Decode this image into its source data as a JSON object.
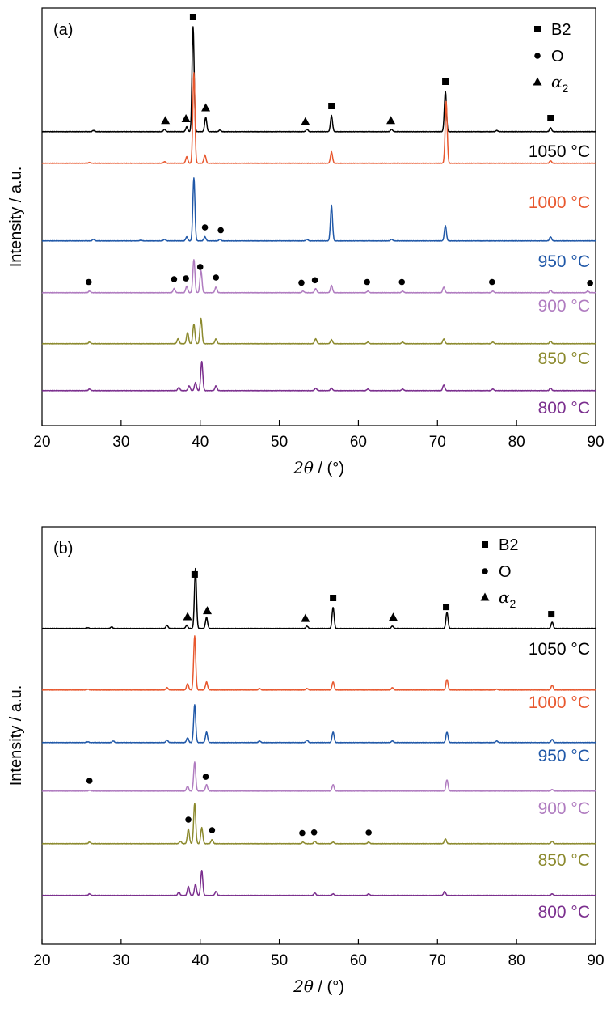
{
  "chart_data": [
    {
      "panel_label": "(a)",
      "type": "line",
      "xlabel_var": "2θ",
      "xlabel_unit": "/ (°)",
      "ylabel": "Intensity / a.u.",
      "xlim": [
        20,
        90
      ],
      "xticks": [
        20,
        30,
        40,
        50,
        60,
        70,
        80,
        90
      ],
      "y_ticks_shown": false,
      "legend": {
        "placement": "top-right",
        "entries": [
          {
            "marker": "square",
            "label": "B2"
          },
          {
            "marker": "circle",
            "label": "O"
          },
          {
            "marker": "triangle",
            "label": "α",
            "subscript": "2"
          }
        ]
      },
      "series": [
        {
          "name": "1050 °C",
          "color": "#000000",
          "peaks": [
            [
              26.5,
              1.5
            ],
            [
              35.5,
              3
            ],
            [
              38.3,
              6
            ],
            [
              39.1,
              130
            ],
            [
              40.7,
              18
            ],
            [
              42.5,
              2
            ],
            [
              53.5,
              3
            ],
            [
              56.6,
              20
            ],
            [
              64.2,
              3
            ],
            [
              71.0,
              50
            ],
            [
              77.5,
              1.5
            ],
            [
              84.3,
              5
            ]
          ]
        },
        {
          "name": "1000 °C",
          "color": "#e8582f",
          "peaks": [
            [
              26.0,
              1
            ],
            [
              35.5,
              2
            ],
            [
              38.3,
              8
            ],
            [
              39.2,
              112
            ],
            [
              40.6,
              10
            ],
            [
              56.6,
              14
            ],
            [
              71.1,
              76
            ],
            [
              84.3,
              3
            ]
          ]
        },
        {
          "name": "950 °C",
          "color": "#2058a8",
          "peaks": [
            [
              26.5,
              2
            ],
            [
              32.5,
              1
            ],
            [
              35.5,
              2
            ],
            [
              38.3,
              5
            ],
            [
              39.2,
              78
            ],
            [
              40.6,
              5
            ],
            [
              42.5,
              2
            ],
            [
              53.5,
              2
            ],
            [
              56.6,
              44
            ],
            [
              64.2,
              2
            ],
            [
              71.0,
              19
            ],
            [
              84.3,
              5
            ]
          ]
        },
        {
          "name": "900 °C",
          "color": "#b07cc0",
          "peaks": [
            [
              26.0,
              2
            ],
            [
              36.7,
              5
            ],
            [
              38.3,
              8
            ],
            [
              39.2,
              41
            ],
            [
              40.1,
              27
            ],
            [
              42.0,
              7
            ],
            [
              53.0,
              2
            ],
            [
              54.6,
              5
            ],
            [
              56.6,
              9
            ],
            [
              61.2,
              2
            ],
            [
              65.6,
              2
            ],
            [
              70.8,
              7
            ],
            [
              77.0,
              2
            ],
            [
              84.3,
              3
            ],
            [
              89.0,
              2
            ]
          ]
        },
        {
          "name": "850 °C",
          "color": "#8c8a2e",
          "peaks": [
            [
              26.0,
              2
            ],
            [
              37.2,
              6
            ],
            [
              38.4,
              14
            ],
            [
              39.2,
              24
            ],
            [
              40.1,
              31
            ],
            [
              42.0,
              6
            ],
            [
              54.6,
              6
            ],
            [
              56.6,
              5
            ],
            [
              61.2,
              2
            ],
            [
              65.6,
              2
            ],
            [
              70.8,
              6
            ],
            [
              77.0,
              2
            ],
            [
              84.3,
              3
            ]
          ]
        },
        {
          "name": "800 °C",
          "color": "#7b2f8e",
          "peaks": [
            [
              26.0,
              2
            ],
            [
              37.3,
              4
            ],
            [
              38.6,
              6
            ],
            [
              39.4,
              10
            ],
            [
              40.2,
              36
            ],
            [
              42.0,
              6
            ],
            [
              54.6,
              3
            ],
            [
              56.6,
              3
            ],
            [
              61.2,
              2
            ],
            [
              65.6,
              2
            ],
            [
              70.8,
              7
            ],
            [
              77.0,
              2
            ],
            [
              84.3,
              3
            ]
          ]
        }
      ],
      "markers": [
        {
          "type": "square",
          "x": 39.1,
          "series": "1050 °C"
        },
        {
          "type": "square",
          "x": 56.6,
          "series": "1050 °C"
        },
        {
          "type": "square",
          "x": 71.0,
          "series": "1050 °C"
        },
        {
          "type": "square",
          "x": 84.3,
          "series": "1050 °C"
        },
        {
          "type": "triangle",
          "x": 35.6,
          "series": "1050 °C"
        },
        {
          "type": "triangle",
          "x": 38.2,
          "series": "1050 °C"
        },
        {
          "type": "triangle",
          "x": 40.7,
          "series": "1050 °C"
        },
        {
          "type": "triangle",
          "x": 53.3,
          "series": "1050 °C"
        },
        {
          "type": "triangle",
          "x": 64.1,
          "series": "1050 °C"
        },
        {
          "type": "circle",
          "x": 40.6,
          "series": "950 °C"
        },
        {
          "type": "circle",
          "x": 42.6,
          "series": "950 °C"
        },
        {
          "type": "circle",
          "x": 25.9,
          "series": "900 °C"
        },
        {
          "type": "circle",
          "x": 36.7,
          "series": "900 °C"
        },
        {
          "type": "circle",
          "x": 38.2,
          "series": "900 °C"
        },
        {
          "type": "circle",
          "x": 40.0,
          "series": "900 °C"
        },
        {
          "type": "circle",
          "x": 42.0,
          "series": "900 °C"
        },
        {
          "type": "circle",
          "x": 52.8,
          "series": "900 °C"
        },
        {
          "type": "circle",
          "x": 54.5,
          "series": "900 °C"
        },
        {
          "type": "circle",
          "x": 61.1,
          "series": "900 °C"
        },
        {
          "type": "circle",
          "x": 65.5,
          "series": "900 °C"
        },
        {
          "type": "circle",
          "x": 76.9,
          "series": "900 °C"
        },
        {
          "type": "circle",
          "x": 89.3,
          "series": "900 °C"
        }
      ]
    },
    {
      "panel_label": "(b)",
      "type": "line",
      "xlabel_var": "2θ",
      "xlabel_unit": "/ (°)",
      "ylabel": "Intensity / a.u.",
      "xlim": [
        20,
        90
      ],
      "xticks": [
        20,
        30,
        40,
        50,
        60,
        70,
        80,
        90
      ],
      "y_ticks_shown": false,
      "legend": {
        "placement": "top-right",
        "entries": [
          {
            "marker": "square",
            "label": "B2"
          },
          {
            "marker": "circle",
            "label": "O"
          },
          {
            "marker": "triangle",
            "label": "α",
            "subscript": "2"
          }
        ]
      },
      "series": [
        {
          "name": "1050 °C",
          "color": "#000000",
          "peaks": [
            [
              25.8,
              1
            ],
            [
              28.8,
              2
            ],
            [
              35.8,
              4
            ],
            [
              38.3,
              4
            ],
            [
              39.4,
              74
            ],
            [
              40.8,
              14
            ],
            [
              53.5,
              3
            ],
            [
              56.8,
              26
            ],
            [
              64.3,
              3
            ],
            [
              71.2,
              20
            ],
            [
              84.5,
              8
            ]
          ]
        },
        {
          "name": "1000 °C",
          "color": "#e8582f",
          "peaks": [
            [
              25.8,
              1
            ],
            [
              35.8,
              3
            ],
            [
              38.4,
              8
            ],
            [
              39.3,
              67
            ],
            [
              40.8,
              10
            ],
            [
              47.5,
              2
            ],
            [
              53.5,
              2
            ],
            [
              56.8,
              10
            ],
            [
              64.3,
              3
            ],
            [
              71.2,
              13
            ],
            [
              77.5,
              1
            ],
            [
              84.5,
              6
            ]
          ]
        },
        {
          "name": "950 °C",
          "color": "#2058a8",
          "peaks": [
            [
              25.8,
              1
            ],
            [
              29.0,
              2
            ],
            [
              35.8,
              3
            ],
            [
              38.4,
              6
            ],
            [
              39.3,
              47
            ],
            [
              40.8,
              13
            ],
            [
              47.5,
              2
            ],
            [
              53.5,
              3
            ],
            [
              56.8,
              13
            ],
            [
              64.3,
              2
            ],
            [
              71.2,
              13
            ],
            [
              77.5,
              2
            ],
            [
              84.5,
              4
            ]
          ]
        },
        {
          "name": "900 °C",
          "color": "#b07cc0",
          "peaks": [
            [
              26.0,
              1
            ],
            [
              38.4,
              6
            ],
            [
              39.3,
              36
            ],
            [
              40.8,
              8
            ],
            [
              56.8,
              8
            ],
            [
              71.2,
              14
            ],
            [
              84.5,
              2
            ]
          ]
        },
        {
          "name": "850 °C",
          "color": "#8c8a2e",
          "peaks": [
            [
              26.0,
              2
            ],
            [
              37.5,
              3
            ],
            [
              38.5,
              18
            ],
            [
              39.3,
              50
            ],
            [
              40.2,
              20
            ],
            [
              41.5,
              5
            ],
            [
              53.0,
              2
            ],
            [
              54.5,
              3
            ],
            [
              56.8,
              2
            ],
            [
              61.3,
              2
            ],
            [
              71.0,
              6
            ],
            [
              84.5,
              3
            ]
          ]
        },
        {
          "name": "800 °C",
          "color": "#7b2f8e",
          "peaks": [
            [
              26.0,
              2
            ],
            [
              37.3,
              4
            ],
            [
              38.5,
              11
            ],
            [
              39.4,
              14
            ],
            [
              40.2,
              31
            ],
            [
              42.0,
              5
            ],
            [
              54.5,
              3
            ],
            [
              56.8,
              2
            ],
            [
              61.3,
              2
            ],
            [
              70.9,
              5
            ],
            [
              84.5,
              2
            ]
          ]
        }
      ],
      "markers": [
        {
          "type": "square",
          "x": 39.3,
          "series": "1050 °C"
        },
        {
          "type": "square",
          "x": 56.8,
          "series": "1050 °C"
        },
        {
          "type": "square",
          "x": 71.1,
          "series": "1050 °C"
        },
        {
          "type": "square",
          "x": 84.4,
          "series": "1050 °C"
        },
        {
          "type": "triangle",
          "x": 38.4,
          "series": "1050 °C"
        },
        {
          "type": "triangle",
          "x": 40.9,
          "series": "1050 °C"
        },
        {
          "type": "triangle",
          "x": 53.3,
          "series": "1050 °C"
        },
        {
          "type": "triangle",
          "x": 64.4,
          "series": "1050 °C"
        },
        {
          "type": "circle",
          "x": 26.0,
          "series": "900 °C"
        },
        {
          "type": "circle",
          "x": 40.7,
          "series": "900 °C"
        },
        {
          "type": "circle",
          "x": 38.5,
          "series": "850 °C"
        },
        {
          "type": "circle",
          "x": 41.5,
          "series": "850 °C"
        },
        {
          "type": "circle",
          "x": 52.9,
          "series": "850 °C"
        },
        {
          "type": "circle",
          "x": 54.4,
          "series": "850 °C"
        },
        {
          "type": "circle",
          "x": 61.3,
          "series": "850 °C"
        }
      ]
    }
  ]
}
